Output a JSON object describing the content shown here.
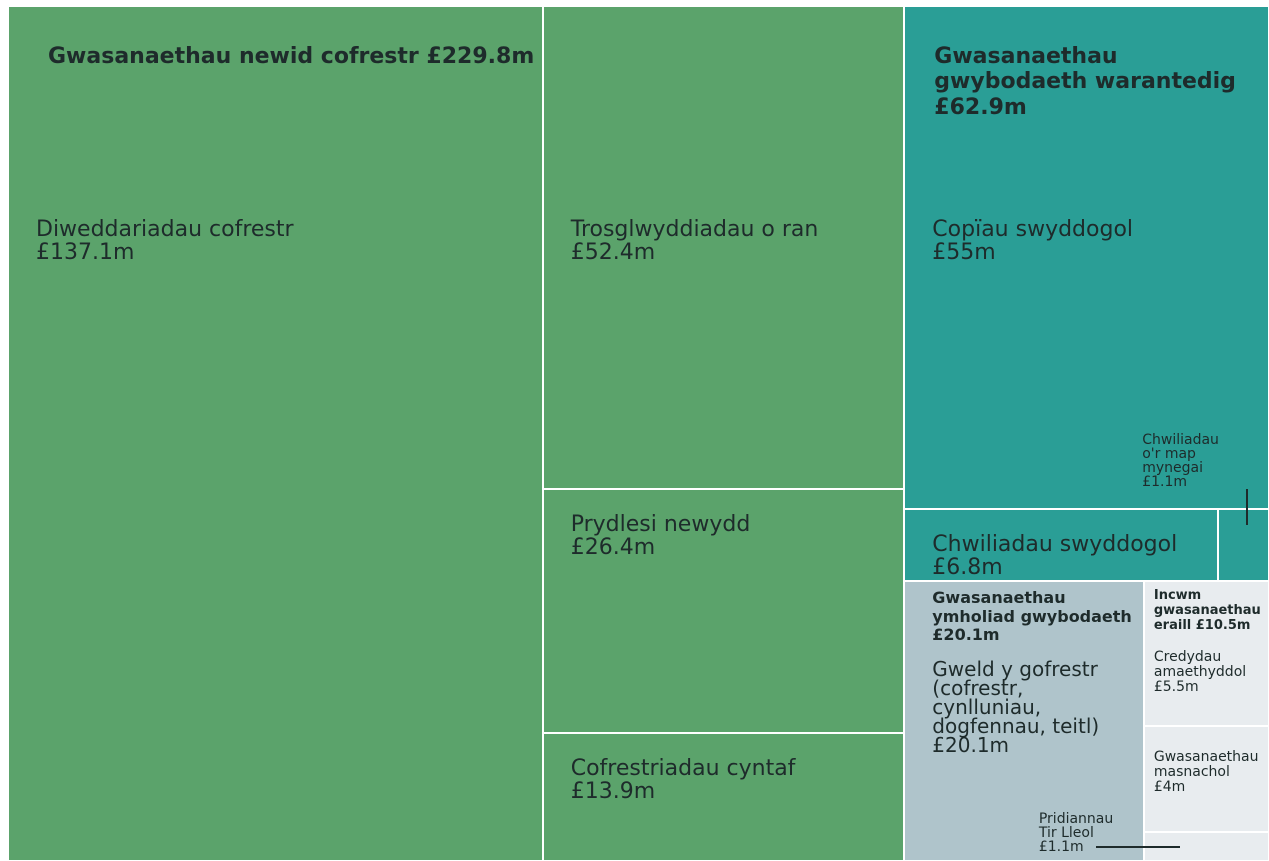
{
  "chart_data": {
    "type": "treemap",
    "groups": [
      {
        "name": "Gwasanaethau newid cofrestr",
        "value": 229.8,
        "value_label": "£229.8m",
        "color": "#5ba36b",
        "children": [
          {
            "name": "Diweddariadau cofrestr",
            "value": 137.1,
            "value_label": "£137.1m"
          },
          {
            "name": "Trosglwyddiadau o ran",
            "value": 52.4,
            "value_label": "£52.4m"
          },
          {
            "name": "Prydlesi newydd",
            "value": 26.4,
            "value_label": "£26.4m"
          },
          {
            "name": "Cofrestriadau cyntaf",
            "value": 13.9,
            "value_label": "£13.9m"
          }
        ]
      },
      {
        "name": "Gwasanaethau gwybodaeth warantedig",
        "value": 62.9,
        "value_label": "£62.9m",
        "color": "#2a9e96",
        "children": [
          {
            "name": "Copïau swyddogol",
            "value": 55,
            "value_label": "£55m"
          },
          {
            "name": "Chwiliadau swyddogol",
            "value": 6.8,
            "value_label": "£6.8m"
          },
          {
            "name": "Chwiliadau o'r map mynegai",
            "value": 1.1,
            "value_label": "£1.1m"
          }
        ]
      },
      {
        "name": "Gwasanaethau ymholiad gwybodaeth",
        "value": 20.1,
        "value_label": "£20.1m",
        "color": "#afc4cb",
        "children": [
          {
            "name": "Gweld y gofrestr (cofrestr, cynlluniau, dogfennau, teitl)",
            "value": 20.1,
            "value_label": "£20.1m"
          }
        ]
      },
      {
        "name": "Incwm gwasanaethau eraill",
        "value": 10.5,
        "value_label": "£10.5m",
        "color": "#e8ecef",
        "children": [
          {
            "name": "Credydau amaethyddol",
            "value": 5.5,
            "value_label": "£5.5m"
          },
          {
            "name": "Gwasanaethau masnachol",
            "value": 4,
            "value_label": "£4m"
          },
          {
            "name": "Pridiannau Tir Lleol",
            "value": 1.1,
            "value_label": "£1.1m"
          }
        ]
      }
    ]
  }
}
